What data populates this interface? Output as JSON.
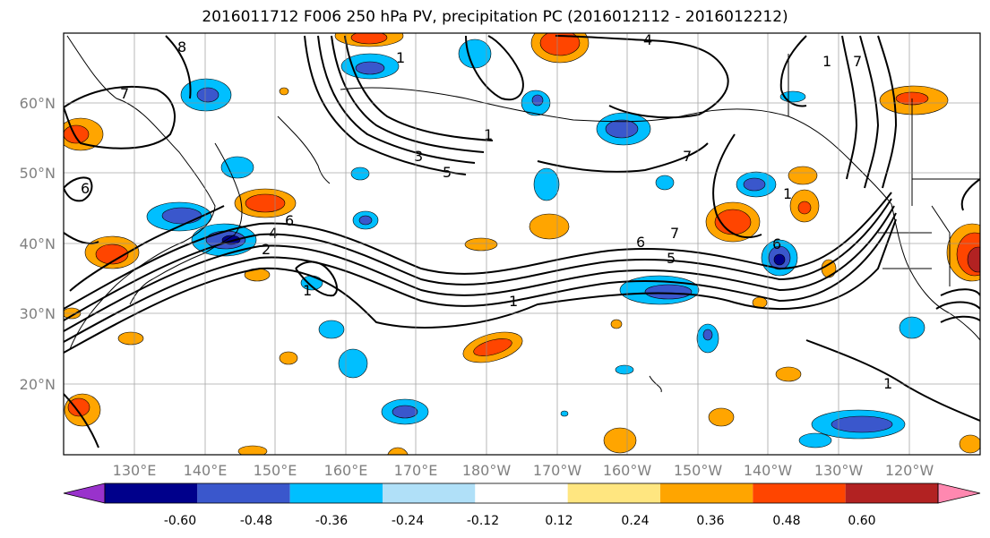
{
  "title": "2016011712 F006 250 hPa PV, precipitation PC (2016012112 - 2016012212)",
  "latitude_labels": [
    "60°N",
    "50°N",
    "40°N",
    "30°N",
    "20°N"
  ],
  "longitude_labels": [
    "130°E",
    "140°E",
    "150°E",
    "160°E",
    "170°E",
    "180°W",
    "170°W",
    "160°W",
    "150°W",
    "140°W",
    "130°W",
    "120°W"
  ],
  "contour_labels": [
    "8",
    "1",
    "4",
    "1",
    "7",
    "7",
    "6",
    "1",
    "3",
    "5",
    "6",
    "4",
    "2",
    "1",
    "6",
    "5",
    "7",
    "6",
    "1",
    "1",
    "7",
    "1"
  ],
  "colorbar": {
    "tick_labels": [
      "-0.60",
      "-0.48",
      "-0.36",
      "-0.24",
      "-0.12",
      "0.12",
      "0.24",
      "0.36",
      "0.48",
      "0.60"
    ],
    "colors": [
      "#9932cc",
      "#00008b",
      "#3a57cc",
      "#00bfff",
      "#b0e0f8",
      "#ffffff",
      "#ffe680",
      "#ffa500",
      "#ff4500",
      "#b22222",
      "#ff88b0"
    ]
  },
  "chart_data": {
    "type": "map",
    "title": "2016011712 F006 250 hPa PV, precipitation PC (2016012112 - 2016012212)",
    "fields": [
      "250 hPa PV (contours)",
      "precipitation PC (shaded)"
    ],
    "lon_range": [
      "120°E",
      "115°W"
    ],
    "lat_range": [
      "10°N",
      "70°N"
    ],
    "shading_levels": [
      -0.6,
      -0.48,
      -0.36,
      -0.24,
      -0.12,
      0.12,
      0.24,
      0.36,
      0.48,
      0.6
    ],
    "grid": true
  }
}
